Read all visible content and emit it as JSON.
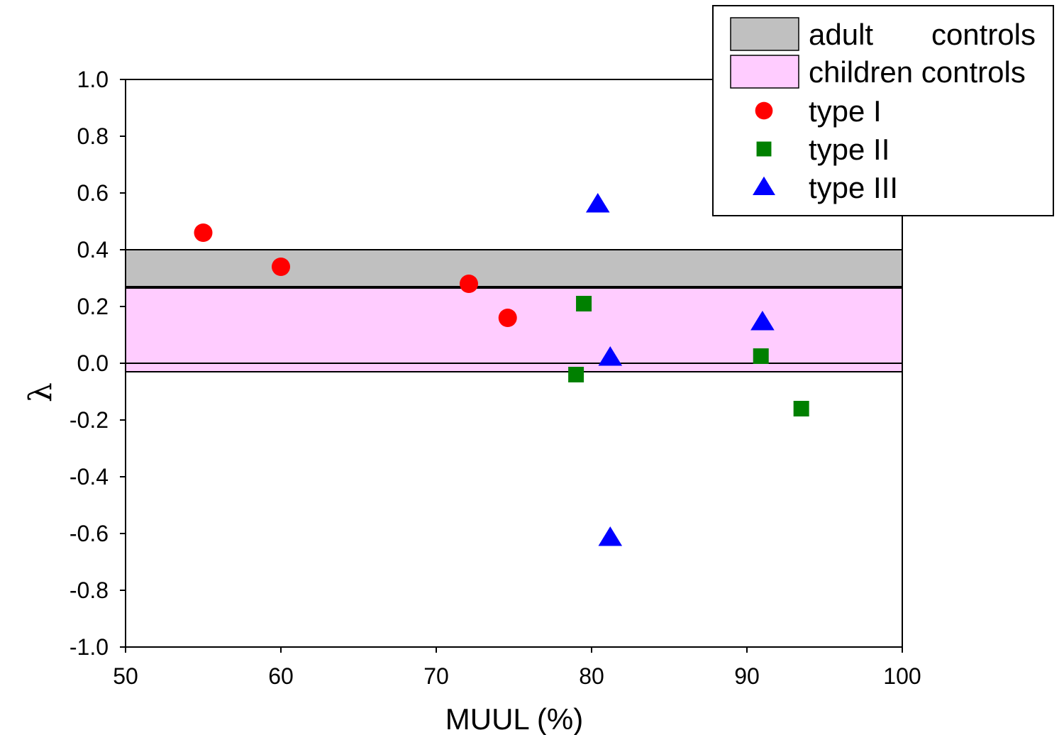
{
  "chart_data": {
    "type": "scatter",
    "title": "",
    "xlabel": "MUUL (%)",
    "ylabel": "λ",
    "xlim": [
      50,
      100
    ],
    "ylim": [
      -1.0,
      1.0
    ],
    "xticks": [
      "50",
      "60",
      "70",
      "80",
      "90",
      "100"
    ],
    "xtick_values": [
      50,
      60,
      70,
      80,
      90,
      100
    ],
    "yticks": [
      "1.0",
      "0.8",
      "0.6",
      "0.4",
      "0.2",
      "0.0",
      "-0.2",
      "-0.4",
      "-0.6",
      "-0.8",
      "-1.0"
    ],
    "ytick_values": [
      1.0,
      0.8,
      0.6,
      0.4,
      0.2,
      0.0,
      -0.2,
      -0.4,
      -0.6,
      -0.8,
      -1.0
    ],
    "zero_line": 0.0,
    "legend_position": "top-right",
    "bands": [
      {
        "name": "adult controls",
        "legend_label": [
          "adult",
          "controls"
        ],
        "y_min": 0.27,
        "y_max": 0.4,
        "color": "#c0c0c0"
      },
      {
        "name": "children controls",
        "legend_label": [
          "children controls"
        ],
        "y_min": -0.03,
        "y_max": 0.265,
        "color": "#ffccff"
      }
    ],
    "series": [
      {
        "name": "type I",
        "marker": "circle",
        "color": "#ff0000",
        "points": [
          [
            55,
            0.46
          ],
          [
            60,
            0.34
          ],
          [
            72.1,
            0.28
          ],
          [
            74.6,
            0.16
          ]
        ]
      },
      {
        "name": "type II",
        "marker": "square",
        "color": "#008000",
        "points": [
          [
            79.5,
            0.21
          ],
          [
            79.0,
            -0.04
          ],
          [
            90.9,
            0.025
          ],
          [
            93.5,
            -0.16
          ]
        ]
      },
      {
        "name": "type III",
        "marker": "triangle",
        "color": "#0000ff",
        "points": [
          [
            80.4,
            0.56
          ],
          [
            81.2,
            0.02
          ],
          [
            91.0,
            0.145
          ],
          [
            81.2,
            -0.615
          ]
        ]
      }
    ]
  }
}
